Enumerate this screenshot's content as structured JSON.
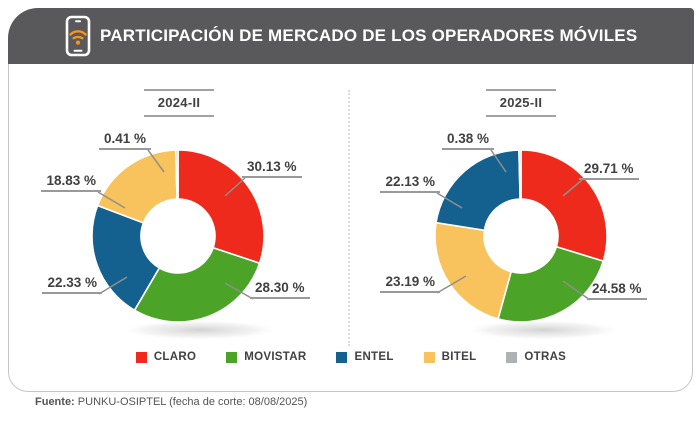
{
  "header": {
    "title": "PARTICIPACIÓN DE MERCADO DE LOS OPERADORES MÓVILES",
    "icon": "phone-wifi-icon"
  },
  "colors": {
    "claro": "#ed2a1c",
    "movistar": "#4ba427",
    "entel": "#14618f",
    "bitel": "#f8c35d",
    "otras": "#afb1b4",
    "header_bg": "#59595b",
    "wifi_accent": "#f7941e",
    "label_text": "#414042",
    "leader_line": "#8f8f8f"
  },
  "chart_data": [
    {
      "type": "donut",
      "title": "2024-II",
      "labels": [
        "CLARO",
        "MOVISTAR",
        "ENTEL",
        "BITEL",
        "OTRAS"
      ],
      "values": [
        30.13,
        28.3,
        22.33,
        18.83,
        0.41
      ],
      "value_labels": [
        "30.13 %",
        "28.30 %",
        "22.33 %",
        "18.83 %",
        "0.41 %"
      ],
      "colors": [
        "#ed2a1c",
        "#4ba427",
        "#14618f",
        "#f8c35d",
        "#afb1b4"
      ],
      "legend_position": "bottom"
    },
    {
      "type": "donut",
      "title": "2025-II",
      "labels": [
        "CLARO",
        "MOVISTAR",
        "BITEL",
        "ENTEL",
        "OTRAS"
      ],
      "values": [
        29.71,
        24.58,
        23.19,
        22.13,
        0.38
      ],
      "value_labels": [
        "29.71 %",
        "24.58 %",
        "23.19 %",
        "22.13 %",
        "0.38 %"
      ],
      "colors": [
        "#ed2a1c",
        "#4ba427",
        "#f8c35d",
        "#14618f",
        "#afb1b4"
      ],
      "legend_position": "bottom"
    }
  ],
  "legend": [
    {
      "label": "CLARO",
      "color": "#ed2a1c"
    },
    {
      "label": "MOVISTAR",
      "color": "#4ba427"
    },
    {
      "label": "ENTEL",
      "color": "#14618f"
    },
    {
      "label": "BITEL",
      "color": "#f8c35d"
    },
    {
      "label": "OTRAS",
      "color": "#afb1b4"
    }
  ],
  "footer": {
    "source_label": "Fuente:",
    "source_text": " PUNKU-OSIPTEL (fecha de corte: 08/08/2025)"
  }
}
